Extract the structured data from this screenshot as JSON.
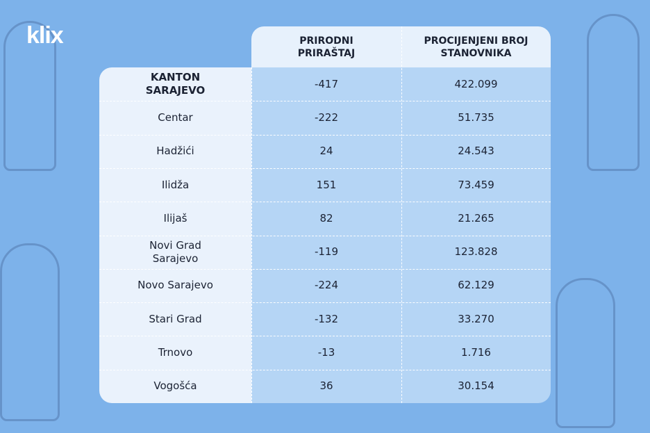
{
  "logo": "klix",
  "table": {
    "columns": [
      "PRIRODNI PRIRAŠTAJ",
      "PROCIJENJENI BROJ STANOVNIKA"
    ],
    "rows": [
      [
        "KANTON SARAJEVO",
        "-417",
        "422.099"
      ],
      [
        "Centar",
        "-222",
        "51.735"
      ],
      [
        "Hadžići",
        "24",
        "24.543"
      ],
      [
        "Ilidža",
        "151",
        "73.459"
      ],
      [
        "Ilijaš",
        "82",
        "21.265"
      ],
      [
        "Novi Grad Sarajevo",
        "-119",
        "123.828"
      ],
      [
        "Novo Sarajevo",
        "-224",
        "62.129"
      ],
      [
        "Stari Grad",
        "-132",
        "33.270"
      ],
      [
        "Trnovo",
        "-13",
        "1.716"
      ],
      [
        "Vogošća",
        "36",
        "30.154"
      ]
    ]
  }
}
